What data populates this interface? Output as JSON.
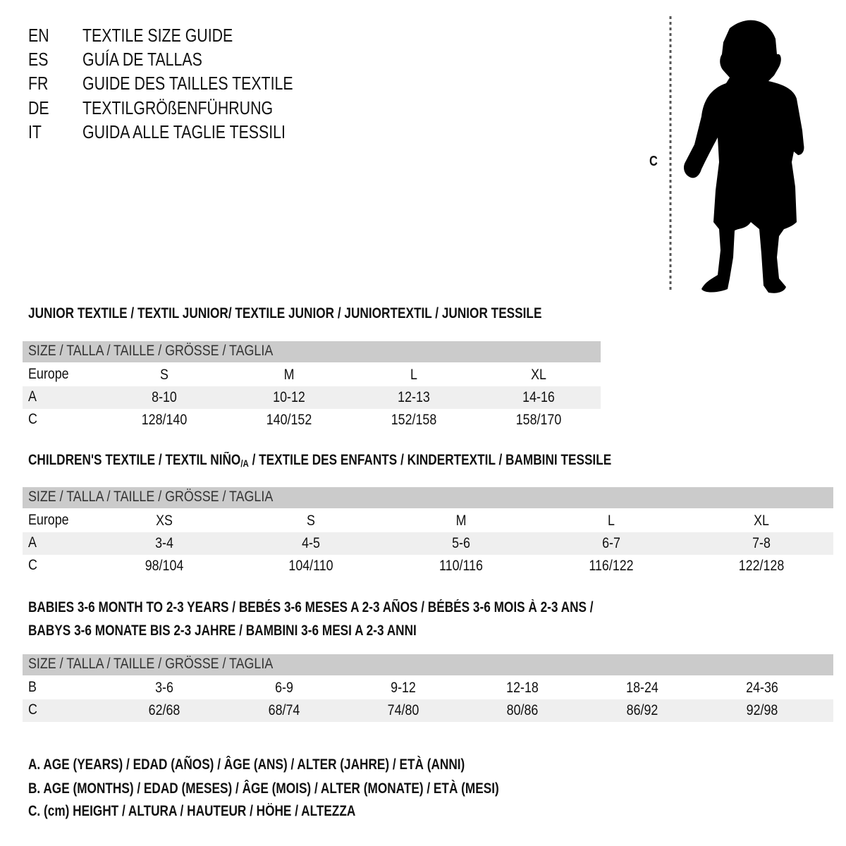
{
  "title_lines": [
    {
      "code": "EN",
      "text": "TEXTILE SIZE GUIDE"
    },
    {
      "code": "ES",
      "text": "GUÍA DE TALLAS"
    },
    {
      "code": "FR",
      "text": "GUIDE DES TAILLES TEXTILE"
    },
    {
      "code": "DE",
      "text": "TEXTILGRÖßENFÜHRUNG"
    },
    {
      "code": "IT",
      "text": "GUIDA ALLE TAGLIE TESSILI"
    }
  ],
  "figure": {
    "icon": "child-silhouette-icon",
    "measure_label": "C"
  },
  "junior": {
    "heading": "JUNIOR TEXTILE / TEXTIL JUNIOR/ TEXTILE JUNIOR / JUNIORTEXTIL / JUNIOR TESSILE",
    "header": "SIZE / TALLA / TAILLE / GRÖSSE / TAGLIA",
    "rows": [
      {
        "label": "Europe",
        "values": [
          "S",
          "M",
          "L",
          "XL"
        ]
      },
      {
        "label": "A",
        "values": [
          "8-10",
          "10-12",
          "12-13",
          "14-16"
        ]
      },
      {
        "label": "C",
        "values": [
          "128/140",
          "140/152",
          "152/158",
          "158/170"
        ]
      }
    ]
  },
  "children": {
    "heading_pre": "CHILDREN'S TEXTILE / TEXTIL NIÑO",
    "heading_sub": "/A",
    "heading_post": " / TEXTILE DES ENFANTS / KINDERTEXTIL / BAMBINI TESSILE",
    "header": "SIZE / TALLA / TAILLE / GRÖSSE / TAGLIA",
    "rows": [
      {
        "label": "Europe",
        "values": [
          "XS",
          "S",
          "M",
          "L",
          "XL"
        ]
      },
      {
        "label": "A",
        "values": [
          "3-4",
          "4-5",
          "5-6",
          "6-7",
          "7-8"
        ]
      },
      {
        "label": "C",
        "values": [
          "98/104",
          "104/110",
          "110/116",
          "116/122",
          "122/128"
        ]
      }
    ]
  },
  "babies": {
    "heading_1": "BABIES 3-6 MONTH TO 2-3 YEARS / BEBÉS 3-6 MESES A 2-3 AÑOS / BÉBÉS 3-6 MOIS À 2-3 ANS /",
    "heading_2": "BABYS 3-6 MONATE BIS 2-3 JAHRE / BAMBINI 3-6 MESI A 2-3 ANNI",
    "header": "SIZE / TALLA / TAILLE / GRÖSSE / TAGLIA",
    "rows": [
      {
        "label": "B",
        "values": [
          "3-6",
          "6-9",
          "9-12",
          "12-18",
          "18-24",
          "24-36"
        ]
      },
      {
        "label": "C",
        "values": [
          "62/68",
          "68/74",
          "74/80",
          "80/86",
          "86/92",
          "92/98"
        ]
      }
    ]
  },
  "legend": [
    "A. AGE (YEARS) / EDAD (AÑOS) / ÂGE (ANS) / ALTER (JAHRE) / ETÀ (ANNI)",
    "B. AGE (MONTHS) / EDAD (MESES) / ÂGE (MOIS) / ALTER (MONATE) / ETÀ (MESI)",
    "C. (cm) HEIGHT / ALTURA / HAUTEUR / HÖHE / ALTEZZA"
  ]
}
